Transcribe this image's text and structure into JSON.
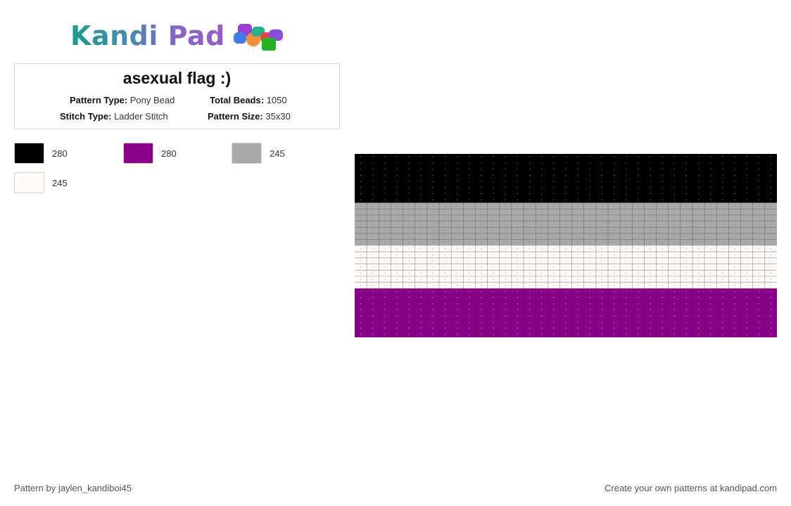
{
  "logo": {
    "text": "Kandi Pad"
  },
  "pattern_info": {
    "title": "asexual flag :)",
    "pattern_type_label": "Pattern Type:",
    "pattern_type_value": "Pony Bead",
    "total_beads_label": "Total Beads:",
    "total_beads_value": "1050",
    "stitch_type_label": "Stitch Type:",
    "stitch_type_value": "Ladder Stitch",
    "pattern_size_label": "Pattern Size:",
    "pattern_size_value": "35x30"
  },
  "legend": [
    {
      "color": "#000000",
      "count": "280"
    },
    {
      "color": "#8b008b",
      "count": "280"
    },
    {
      "color": "#a9a9a9",
      "count": "245"
    },
    {
      "color": "#fffaf8",
      "count": "245"
    }
  ],
  "pattern": {
    "columns": 35,
    "bands": [
      {
        "color": "#000000",
        "line": "#000000",
        "dot": "#9a9a9a",
        "rows": 8
      },
      {
        "color": "#a9a9a9",
        "line": "#6e6e6e",
        "dot": "#6e6e6e",
        "rows": 7
      },
      {
        "color": "#fffaf8",
        "line": "#8d8d8d",
        "dot": "#8d8d8d",
        "rows": 7
      },
      {
        "color": "#8b008b",
        "line": "#5c005c",
        "dot": "#cfcfcf",
        "rows": 8
      }
    ]
  },
  "footer": {
    "credit": "Pattern by jaylen_kandiboi45",
    "promo": "Create your own patterns at kandipad.com"
  }
}
